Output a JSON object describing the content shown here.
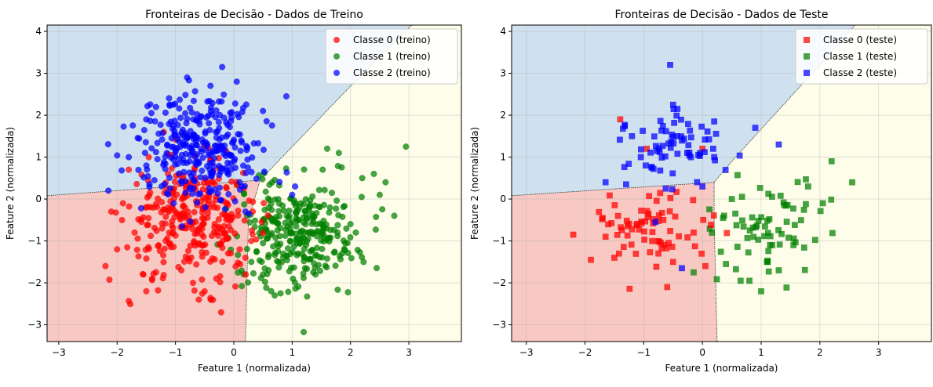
{
  "chart_data": [
    {
      "type": "scatter",
      "title": "Fronteiras de Decisão - Dados de Treino",
      "xlabel": "Feature 1 (normalizada)",
      "ylabel": "Feature 2 (normalizada)",
      "xlim": [
        -3.2,
        3.9
      ],
      "ylim": [
        -3.4,
        4.15
      ],
      "xticks": [
        -3,
        -2,
        -1,
        0,
        1,
        2,
        3
      ],
      "yticks": [
        -3,
        -2,
        -1,
        0,
        1,
        2,
        3,
        4
      ],
      "grid": true,
      "legend_position": "top-right",
      "marker": "circle",
      "regions": [
        {
          "class": 0,
          "color": "#f7c9c2",
          "polygon": [
            [
              -3.2,
              0.08
            ],
            [
              0.45,
              0.45
            ],
            [
              0.25,
              -0.5
            ],
            [
              0.2,
              -3.4
            ],
            [
              -3.2,
              -3.4
            ]
          ]
        },
        {
          "class": 1,
          "color": "#fdfde9",
          "polygon": [
            [
              0.45,
              0.45
            ],
            [
              1.9,
              2.55
            ],
            [
              3.05,
              4.15
            ],
            [
              3.9,
              4.15
            ],
            [
              3.9,
              -3.4
            ],
            [
              0.2,
              -3.4
            ],
            [
              0.25,
              -0.5
            ]
          ]
        },
        {
          "class": 2,
          "color": "#cfe0ef",
          "polygon": [
            [
              -3.2,
              4.15
            ],
            [
              3.05,
              4.15
            ],
            [
              1.9,
              2.55
            ],
            [
              0.45,
              0.45
            ],
            [
              -3.2,
              0.08
            ]
          ]
        }
      ],
      "series": [
        {
          "name": "Classe 0 (treino)",
          "color": "#ff0000",
          "center": [
            -0.7,
            -0.5
          ],
          "spread": [
            0.55,
            0.7
          ],
          "count": 320,
          "points": [
            [
              -2.2,
              -1.6
            ],
            [
              -2.1,
              -0.3
            ],
            [
              -2.0,
              -1.2
            ],
            [
              -1.9,
              -0.1
            ],
            [
              -1.8,
              0.7
            ],
            [
              -1.7,
              -0.8
            ],
            [
              -1.55,
              -1.8
            ],
            [
              -1.5,
              -2.2
            ],
            [
              -1.4,
              -1.9
            ],
            [
              -1.2,
              1.6
            ],
            [
              -0.9,
              -1.7
            ],
            [
              -0.7,
              -2.0
            ],
            [
              -0.6,
              -2.4
            ],
            [
              -0.5,
              -2.2
            ],
            [
              -0.3,
              -1.9
            ],
            [
              0.1,
              -1.2
            ],
            [
              0.2,
              -1.4
            ],
            [
              0.3,
              -1.0
            ]
          ]
        },
        {
          "name": "Classe 1 (treino)",
          "color": "#008000",
          "center": [
            1.1,
            -0.8
          ],
          "spread": [
            0.55,
            0.6
          ],
          "count": 320,
          "points": [
            [
              0.3,
              -1.5
            ],
            [
              0.5,
              -1.8
            ],
            [
              0.7,
              -2.3
            ],
            [
              0.8,
              -2.25
            ],
            [
              1.4,
              -1.8
            ],
            [
              1.6,
              1.2
            ],
            [
              1.8,
              1.1
            ],
            [
              2.2,
              0.5
            ],
            [
              2.4,
              0.6
            ],
            [
              2.5,
              0.1
            ],
            [
              2.6,
              0.4
            ],
            [
              2.75,
              -0.4
            ],
            [
              2.95,
              1.25
            ]
          ]
        },
        {
          "name": "Classe 2 (treino)",
          "color": "#0000ff",
          "center": [
            -0.55,
            1.2
          ],
          "spread": [
            0.5,
            0.65
          ],
          "count": 320,
          "points": [
            [
              -2.15,
              0.2
            ],
            [
              -1.8,
              1.0
            ],
            [
              -1.5,
              1.9
            ],
            [
              -0.8,
              2.9
            ],
            [
              -0.4,
              2.7
            ],
            [
              -0.2,
              3.15
            ],
            [
              0.05,
              2.8
            ],
            [
              0.5,
              2.1
            ],
            [
              0.9,
              2.45
            ],
            [
              1.05,
              0.3
            ],
            [
              1.0,
              0.1
            ],
            [
              0.2,
              -0.3
            ],
            [
              0.1,
              0.4
            ]
          ]
        }
      ]
    },
    {
      "type": "scatter",
      "title": "Fronteiras de Decisão - Dados de Teste",
      "xlabel": "Feature 1 (normalizada)",
      "ylabel": "Feature 2 (normalizada)",
      "xlim": [
        -3.25,
        3.9
      ],
      "ylim": [
        -3.4,
        4.15
      ],
      "xticks": [
        -3,
        -2,
        -1,
        0,
        1,
        2,
        3
      ],
      "yticks": [
        -3,
        -2,
        -1,
        0,
        1,
        2,
        3,
        4
      ],
      "grid": true,
      "legend_position": "top-right",
      "marker": "square",
      "regions": [
        {
          "class": 0,
          "color": "#f7c9c2",
          "polygon": [
            [
              -3.25,
              0.08
            ],
            [
              0.2,
              0.4
            ],
            [
              0.2,
              -0.5
            ],
            [
              0.25,
              -3.4
            ],
            [
              -3.25,
              -3.4
            ]
          ]
        },
        {
          "class": 1,
          "color": "#fdfde9",
          "polygon": [
            [
              0.2,
              0.4
            ],
            [
              0.5,
              0.9
            ],
            [
              2.0,
              3.2
            ],
            [
              2.6,
              4.15
            ],
            [
              3.9,
              4.15
            ],
            [
              3.9,
              -3.4
            ],
            [
              0.25,
              -3.4
            ],
            [
              0.2,
              -0.5
            ]
          ]
        },
        {
          "class": 2,
          "color": "#cfe0ef",
          "polygon": [
            [
              -3.25,
              4.15
            ],
            [
              2.6,
              4.15
            ],
            [
              2.0,
              3.2
            ],
            [
              0.5,
              0.9
            ],
            [
              0.2,
              0.4
            ],
            [
              -3.25,
              0.08
            ]
          ]
        }
      ],
      "series": [
        {
          "name": "Classe 0 (teste)",
          "color": "#ff0000",
          "center": [
            -0.8,
            -0.55
          ],
          "spread": [
            0.45,
            0.55
          ],
          "count": 80,
          "points": [
            [
              -2.2,
              -0.85
            ],
            [
              -1.9,
              -1.45
            ],
            [
              -1.65,
              -0.9
            ],
            [
              -1.4,
              1.9
            ],
            [
              -1.5,
              -1.4
            ],
            [
              -0.95,
              1.2
            ],
            [
              -0.6,
              -2.1
            ],
            [
              -0.5,
              -1.5
            ],
            [
              -0.15,
              -0.8
            ],
            [
              0.05,
              -1.6
            ],
            [
              0.0,
              1.2
            ],
            [
              -1.7,
              -0.45
            ]
          ]
        },
        {
          "name": "Classe 1 (teste)",
          "color": "#008000",
          "center": [
            1.05,
            -0.65
          ],
          "spread": [
            0.5,
            0.55
          ],
          "count": 80,
          "points": [
            [
              0.4,
              -1.55
            ],
            [
              0.65,
              -1.95
            ],
            [
              0.8,
              -1.95
            ],
            [
              1.0,
              -2.2
            ],
            [
              1.1,
              -1.5
            ],
            [
              1.3,
              -1.7
            ],
            [
              2.55,
              0.4
            ],
            [
              2.2,
              0.9
            ],
            [
              1.55,
              -1.1
            ],
            [
              0.5,
              0.0
            ],
            [
              1.8,
              0.3
            ],
            [
              2.05,
              -0.1
            ],
            [
              -0.15,
              -1.75
            ]
          ]
        },
        {
          "name": "Classe 2 (teste)",
          "color": "#0000ff",
          "center": [
            -0.45,
            1.25
          ],
          "spread": [
            0.4,
            0.45
          ],
          "count": 80,
          "points": [
            [
              -0.55,
              3.2
            ],
            [
              -0.5,
              2.25
            ],
            [
              -1.3,
              0.35
            ],
            [
              -1.65,
              0.4
            ],
            [
              -1.2,
              1.5
            ],
            [
              1.3,
              1.3
            ],
            [
              0.9,
              1.7
            ],
            [
              0.2,
              1.85
            ],
            [
              -0.35,
              -1.65
            ],
            [
              -0.8,
              -0.55
            ],
            [
              0.0,
              0.3
            ],
            [
              -1.05,
              1.0
            ],
            [
              0.2,
              1.0
            ]
          ]
        }
      ]
    }
  ]
}
